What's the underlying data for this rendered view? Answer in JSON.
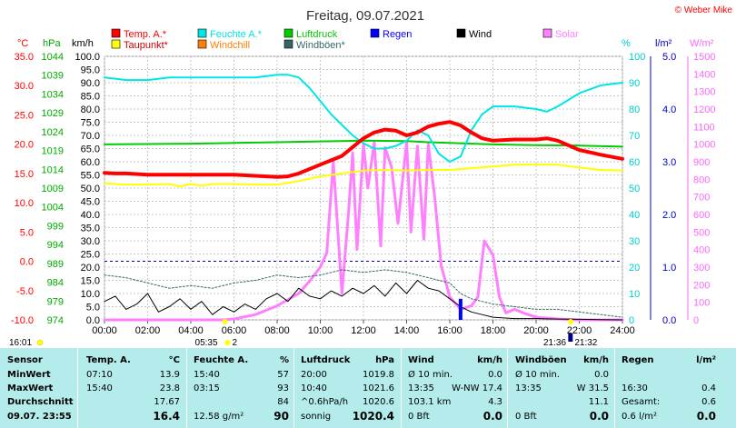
{
  "chart_data": {
    "type": "line",
    "title": "Freitag, 09.07.2021",
    "copyright": "© Weber Mike",
    "colors": {
      "temp": "#ff0000",
      "dew": "#ffff00",
      "humidity": "#00e5e5",
      "windchill": "#ff8000",
      "pressure": "#00cc00",
      "gust": "#336666",
      "rain": "#0000ff",
      "wind": "#000000",
      "solar": "#ff80ff"
    },
    "legend": [
      {
        "name": "Temp. A.*",
        "color": "#ff0000",
        "row": 0,
        "col": 0
      },
      {
        "name": "Feuchte A.*",
        "color": "#00e5e5",
        "row": 0,
        "col": 1
      },
      {
        "name": "Luftdruck",
        "color": "#00cc00",
        "row": 0,
        "col": 2
      },
      {
        "name": "Regen",
        "color": "#0000ff",
        "row": 0,
        "col": 3
      },
      {
        "name": "Wind",
        "color": "#000000",
        "row": 0,
        "col": 4
      },
      {
        "name": "Solar",
        "color": "#ff80ff",
        "row": 0,
        "col": 5
      },
      {
        "name": "Taupunkt*",
        "color": "#ffff00",
        "row": 1,
        "col": 0
      },
      {
        "name": "Windchill",
        "color": "#ff8000",
        "row": 1,
        "col": 1
      },
      {
        "name": "Windböen*",
        "color": "#336666",
        "row": 1,
        "col": 2
      }
    ],
    "axis_units": {
      "temp": "°C",
      "pressure": "hPa",
      "wind": "km/h",
      "humidity": "%",
      "rain": "l/m²",
      "solar": "W/m²"
    },
    "axes": {
      "temp": {
        "ticks": [
          "35.0",
          "30.0",
          "25.0",
          "20.0",
          "15.0",
          "10.0",
          "5.0",
          "0.0",
          "-5.0",
          "-10.0"
        ],
        "min": -10,
        "max": 35
      },
      "pressure": {
        "ticks": [
          "1044",
          "1039",
          "1034",
          "1029",
          "1024",
          "1019",
          "1014",
          "1009",
          "1004",
          "999",
          "994",
          "989",
          "984",
          "979",
          "974"
        ],
        "min": 974,
        "max": 1044
      },
      "wind": {
        "ticks": [
          "100.0",
          "95.0",
          "90.0",
          "85.0",
          "80.0",
          "75.0",
          "70.0",
          "65.0",
          "60.0",
          "55.0",
          "50.0",
          "45.0",
          "40.0",
          "35.0",
          "30.0",
          "25.0",
          "20.0",
          "15.0",
          "10.0",
          "5.0",
          "0.0"
        ],
        "min": 0,
        "max": 100
      },
      "humidity": {
        "ticks": [
          "100",
          "90",
          "80",
          "70",
          "60",
          "50",
          "40",
          "30",
          "20",
          "10",
          "0"
        ],
        "min": 0,
        "max": 100
      },
      "rain": {
        "ticks": [
          "5.0",
          "4.0",
          "3.0",
          "2.0",
          "1.0",
          "0.0"
        ],
        "min": 0,
        "max": 5
      },
      "solar": {
        "ticks": [
          "1500",
          "1400",
          "1300",
          "1200",
          "1100",
          "1000",
          "900",
          "800",
          "700",
          "600",
          "500",
          "400",
          "300",
          "200",
          "100",
          "0"
        ],
        "min": 0,
        "max": 1500
      }
    },
    "x_ticks": [
      "00:00",
      "02:00",
      "04:00",
      "06:00",
      "08:00",
      "10:00",
      "12:00",
      "14:00",
      "16:00",
      "18:00",
      "20:00",
      "22:00",
      "24:00"
    ],
    "x_range": [
      0,
      24
    ],
    "sun_events": {
      "moonrise": {
        "time": "16:01",
        "hour": 16.02
      },
      "sunrise": {
        "time": "05:35",
        "hour": 5.58
      },
      "moon_phase": {
        "label": "2",
        "hour": 5.58
      },
      "sunset": {
        "time": "21:36",
        "hour": 21.6
      },
      "moonset": {
        "time": "21:32",
        "hour": 21.53
      }
    },
    "series": {
      "temp": {
        "hours": [
          0,
          0.5,
          1,
          2,
          3,
          4,
          5,
          6,
          7,
          8,
          8.5,
          9,
          10,
          11,
          11.5,
          12,
          12.5,
          13,
          13.5,
          14,
          14.5,
          15,
          15.5,
          16,
          16.5,
          17,
          17.5,
          18,
          19,
          20,
          20.5,
          21,
          22,
          23,
          24
        ],
        "values": [
          15.1,
          15.0,
          15.0,
          14.8,
          14.8,
          14.8,
          14.8,
          14.8,
          14.6,
          14.4,
          14.5,
          15.0,
          16.5,
          18.0,
          19.5,
          21.0,
          22.0,
          22.5,
          22.3,
          21.5,
          22.0,
          23.0,
          23.5,
          23.8,
          23.2,
          22.0,
          21.0,
          20.6,
          20.8,
          20.8,
          21.0,
          20.6,
          19.0,
          18.2,
          17.5
        ]
      },
      "dew": {
        "hours": [
          0,
          1,
          2,
          3,
          3.5,
          4,
          4.5,
          5,
          6,
          7,
          8,
          9,
          10,
          11,
          12,
          13,
          14,
          15,
          16,
          17,
          18,
          19,
          20,
          21,
          22,
          23,
          24
        ],
        "values": [
          13.3,
          13.1,
          13.1,
          13.2,
          12.8,
          13.2,
          12.9,
          13.2,
          13.2,
          13.1,
          13.1,
          13.7,
          14.5,
          15.0,
          15.5,
          15.6,
          15.5,
          15.6,
          15.6,
          15.9,
          16.2,
          16.5,
          16.5,
          16.5,
          16.0,
          15.6,
          15.5
        ]
      },
      "humidity": {
        "hours": [
          0,
          1,
          2,
          3,
          4,
          5,
          6,
          7,
          8,
          8.5,
          9,
          9.5,
          10,
          10.5,
          11,
          11.5,
          12,
          12.5,
          13,
          13.5,
          14,
          14.5,
          15,
          15.5,
          16,
          16.5,
          17,
          17.5,
          18,
          19,
          20,
          20.5,
          21,
          22,
          23,
          24
        ],
        "values": [
          92,
          91,
          91,
          92,
          92,
          92,
          92,
          92,
          93,
          93,
          92,
          88,
          83,
          78,
          74,
          70,
          67,
          65,
          65,
          66,
          68,
          72,
          70,
          63,
          60,
          62,
          72,
          78,
          81,
          81,
          80,
          79,
          81,
          86,
          89,
          90
        ]
      },
      "pressure": {
        "hours": [
          0,
          2,
          4,
          6,
          8,
          10,
          12,
          14,
          15,
          16,
          18,
          20,
          22,
          24
        ],
        "values": [
          1020.6,
          1020.7,
          1020.8,
          1021.0,
          1021.2,
          1021.4,
          1021.6,
          1021.5,
          1021.2,
          1021.0,
          1020.6,
          1020.4,
          1020.3,
          1020.0
        ]
      },
      "gust": {
        "hours": [
          0,
          1,
          2,
          3,
          4,
          5,
          6,
          7,
          8,
          9,
          10,
          11,
          12,
          13,
          14,
          15,
          16,
          16.5,
          17,
          18,
          19,
          20,
          21,
          22,
          23,
          24
        ],
        "values": [
          17,
          16,
          14,
          12,
          13,
          12,
          14,
          15,
          17,
          16,
          17,
          19,
          18,
          19,
          18,
          16,
          14,
          10,
          8,
          6,
          5,
          4,
          4,
          3,
          2,
          1
        ]
      },
      "wind": {
        "hours": [
          0,
          0.5,
          1,
          1.5,
          2,
          2.5,
          3,
          3.5,
          4,
          4.5,
          5,
          5.5,
          6,
          6.5,
          7,
          7.5,
          8,
          8.5,
          9,
          9.5,
          10,
          10.5,
          11,
          11.5,
          12,
          12.5,
          13,
          13.5,
          14,
          14.5,
          15,
          15.5,
          16,
          16.5,
          17,
          17.5,
          18,
          19,
          20,
          21,
          22,
          23,
          24
        ],
        "values": [
          7,
          9,
          4,
          6,
          10,
          3,
          5,
          8,
          4,
          7,
          2,
          5,
          3,
          6,
          4,
          8,
          10,
          7,
          12,
          9,
          8,
          11,
          9,
          12,
          10,
          13,
          9,
          14,
          10,
          15,
          12,
          11,
          8,
          5,
          3,
          2,
          1,
          0.5,
          0.5,
          0.3,
          0.2,
          0.1,
          0
        ]
      },
      "solar": {
        "hours": [
          0,
          5.5,
          6,
          7,
          8,
          9,
          9.5,
          10,
          10.3,
          10.6,
          11,
          11.3,
          11.5,
          11.7,
          12,
          12.2,
          12.5,
          12.8,
          13,
          13.3,
          13.6,
          14,
          14.2,
          14.5,
          14.8,
          15,
          15.3,
          15.6,
          16,
          16.5,
          17,
          17.3,
          17.6,
          18,
          18.3,
          18.6,
          19,
          19.5,
          20,
          21,
          22,
          24
        ],
        "values": [
          0,
          0,
          5,
          30,
          80,
          150,
          220,
          300,
          380,
          900,
          150,
          600,
          950,
          400,
          1000,
          750,
          1010,
          420,
          980,
          870,
          550,
          1010,
          500,
          990,
          460,
          1000,
          700,
          310,
          130,
          60,
          80,
          130,
          450,
          370,
          130,
          40,
          60,
          35,
          15,
          5,
          0,
          0
        ]
      },
      "rain_bar": {
        "hour": 16.5,
        "value": 0.4
      }
    }
  },
  "table": {
    "headers": [
      {
        "text": "Sensor",
        "col": "sensor"
      },
      {
        "text": "Temp. A.",
        "col": "temp"
      },
      {
        "text": "°C",
        "col": "temp_u"
      },
      {
        "text": "Feuchte A.",
        "col": "hum"
      },
      {
        "text": "%",
        "col": "hum_u"
      },
      {
        "text": "Luftdruck",
        "col": "press"
      },
      {
        "text": "hPa",
        "col": "press_u"
      },
      {
        "text": "Wind",
        "col": "wind"
      },
      {
        "text": "km/h",
        "col": "wind_u"
      },
      {
        "text": "Windböen",
        "col": "gust"
      },
      {
        "text": "km/h",
        "col": "gust_u"
      },
      {
        "text": "Regen",
        "col": "rain"
      },
      {
        "text": "l/m²",
        "col": "rain_u"
      }
    ],
    "rows": [
      {
        "label": "MinWert",
        "cells": [
          "07:10",
          "13.9",
          "15:40",
          "57",
          "20:00",
          "1019.8",
          "Ø 10 min.",
          "0.0",
          "Ø 10 min.",
          "0.0",
          "",
          ""
        ]
      },
      {
        "label": "MaxWert",
        "cells": [
          "15:40",
          "23.8",
          "03:15",
          "93",
          "10:40",
          "1021.6",
          "13:35",
          "W-NW 17.4",
          "13:35",
          "W 31.5",
          "16:30",
          "0.4"
        ]
      },
      {
        "label": "Durchschnitt",
        "cells": [
          "",
          "17.67",
          "",
          "84",
          "^0.6hPa/h",
          "1020.6",
          "103.1 km",
          "4.3",
          "",
          "11.1",
          "Gesamt:",
          "0.6"
        ]
      },
      {
        "label": "09.07. 23:55",
        "cells": [
          "",
          "16.4",
          "12.58 g/m²",
          "90",
          "sonnig",
          "1020.4",
          "0 Bft",
          "0.0",
          "0 Bft",
          "0.0",
          "0.6 l/m²",
          "0.0"
        ]
      }
    ]
  }
}
